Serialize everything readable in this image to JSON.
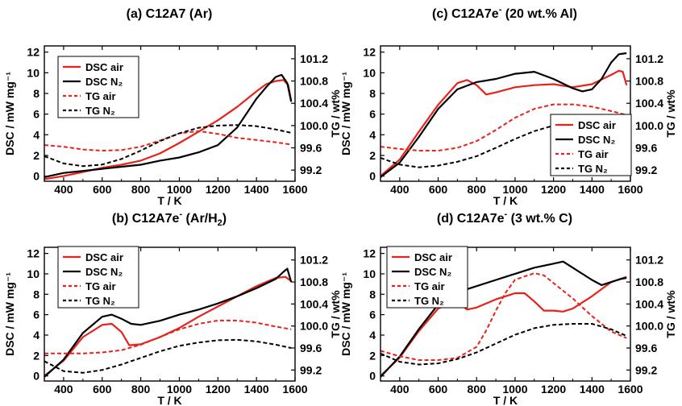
{
  "colors": {
    "air": "#e8211b",
    "n2": "#000000"
  },
  "chart_data": [
    {
      "type": "line",
      "title": "(a) C12A7 (Ar)",
      "title_parts": {
        "main": "(a) C12A7",
        "sup": "",
        "tail": " (Ar)"
      },
      "xlabel": "T / K",
      "ylabel_left": "DSC / mW mg⁻¹",
      "ylabel_right": "TG / wt%",
      "xlim": [
        300,
        1600
      ],
      "ylim_left": [
        -0.5,
        12.6
      ],
      "ylim_right": [
        99.0,
        101.43
      ],
      "xticks": [
        "400",
        "600",
        "800",
        "1000",
        "1200",
        "1400",
        "1600"
      ],
      "yticks_left": [
        "0",
        "2",
        "4",
        "6",
        "8",
        "10",
        "12"
      ],
      "yticks_right": [
        "99.2",
        "99.6",
        "100.0",
        "100.4",
        "100.8",
        "101.2"
      ],
      "legend": {
        "position": "top-left",
        "items": [
          "DSC air",
          "DSC N₂",
          "TG air",
          "TG N₂"
        ]
      },
      "series": [
        {
          "name": "DSC air",
          "axis": "left",
          "style": "solid",
          "color": "air",
          "x": [
            300,
            400,
            500,
            600,
            700,
            800,
            900,
            1000,
            1100,
            1200,
            1300,
            1400,
            1450,
            1500,
            1540,
            1565,
            1580
          ],
          "y": [
            -0.3,
            0.0,
            0.4,
            0.8,
            1.1,
            1.5,
            2.2,
            3.2,
            4.3,
            5.4,
            6.7,
            8.2,
            8.9,
            9.2,
            9.3,
            8.8,
            7.3
          ]
        },
        {
          "name": "DSC N₂",
          "axis": "left",
          "style": "solid",
          "color": "n2",
          "x": [
            300,
            400,
            500,
            600,
            700,
            800,
            900,
            1000,
            1100,
            1200,
            1300,
            1400,
            1450,
            1500,
            1530,
            1560,
            1580
          ],
          "y": [
            -0.1,
            0.3,
            0.5,
            0.7,
            0.9,
            1.1,
            1.5,
            1.8,
            2.3,
            3.0,
            4.7,
            7.5,
            8.6,
            9.6,
            9.8,
            9.0,
            7.2
          ]
        },
        {
          "name": "TG air",
          "axis": "right",
          "style": "dashed",
          "color": "air",
          "x": [
            300,
            400,
            500,
            600,
            700,
            800,
            900,
            1000,
            1100,
            1200,
            1300,
            1400,
            1500,
            1580
          ],
          "y": [
            99.65,
            99.62,
            99.57,
            99.55,
            99.56,
            99.62,
            99.73,
            99.86,
            99.9,
            99.85,
            99.78,
            99.74,
            99.7,
            99.66
          ]
        },
        {
          "name": "TG N₂",
          "axis": "right",
          "style": "dashed",
          "color": "n2",
          "x": [
            300,
            400,
            500,
            600,
            700,
            800,
            900,
            1000,
            1100,
            1200,
            1300,
            1400,
            1500,
            1580
          ],
          "y": [
            99.45,
            99.32,
            99.27,
            99.3,
            99.4,
            99.55,
            99.72,
            99.86,
            99.96,
            100.0,
            100.01,
            99.99,
            99.93,
            99.87
          ]
        }
      ]
    },
    {
      "type": "line",
      "title": "(c) C12A7e⁻ (20 wt.% Al)",
      "title_parts": {
        "main": "(c) C12A7e",
        "sup": "-",
        "tail": " (20 wt.% Al)"
      },
      "xlabel": "T / K",
      "ylabel_left": "DSC / mW mg⁻¹",
      "ylabel_right": "TG / wt%",
      "xlim": [
        300,
        1600
      ],
      "ylim_left": [
        -0.5,
        12.6
      ],
      "ylim_right": [
        99.0,
        101.43
      ],
      "xticks": [
        "400",
        "600",
        "800",
        "1000",
        "1200",
        "1400",
        "1600"
      ],
      "yticks_left": [
        "0",
        "2",
        "4",
        "6",
        "8",
        "10",
        "12"
      ],
      "yticks_right": [
        "99.2",
        "99.6",
        "100.0",
        "100.4",
        "100.8",
        "101.2"
      ],
      "legend": {
        "position": "bottom-right",
        "items": [
          "DSC air",
          "DSC N₂",
          "TG air",
          "TG N₂"
        ]
      },
      "series": [
        {
          "name": "DSC air",
          "axis": "left",
          "style": "solid",
          "color": "air",
          "x": [
            300,
            400,
            500,
            600,
            700,
            750,
            800,
            850,
            900,
            1000,
            1100,
            1200,
            1300,
            1400,
            1500,
            1540,
            1560,
            1580
          ],
          "y": [
            0.0,
            1.6,
            4.3,
            6.9,
            9.0,
            9.3,
            8.8,
            7.9,
            8.1,
            8.6,
            8.8,
            8.9,
            8.6,
            8.9,
            9.8,
            10.2,
            10.1,
            8.8
          ]
        },
        {
          "name": "DSC N₂",
          "axis": "left",
          "style": "solid",
          "color": "n2",
          "x": [
            300,
            400,
            500,
            600,
            700,
            800,
            900,
            1000,
            1100,
            1200,
            1300,
            1350,
            1400,
            1450,
            1500,
            1540,
            1580
          ],
          "y": [
            -0.1,
            1.3,
            3.8,
            6.5,
            8.4,
            9.1,
            9.4,
            9.9,
            10.1,
            9.4,
            8.5,
            8.2,
            8.4,
            9.4,
            11.0,
            11.8,
            11.9
          ]
        },
        {
          "name": "TG air",
          "axis": "right",
          "style": "dashed",
          "color": "air",
          "x": [
            300,
            400,
            500,
            600,
            700,
            800,
            900,
            1000,
            1100,
            1200,
            1300,
            1400,
            1500,
            1580
          ],
          "y": [
            99.62,
            99.58,
            99.55,
            99.55,
            99.6,
            99.72,
            99.92,
            100.14,
            100.3,
            100.38,
            100.38,
            100.34,
            100.26,
            100.19
          ]
        },
        {
          "name": "TG N₂",
          "axis": "right",
          "style": "dashed",
          "color": "n2",
          "x": [
            300,
            400,
            500,
            600,
            700,
            800,
            900,
            1000,
            1100,
            1200,
            1300,
            1400,
            1500,
            1580
          ],
          "y": [
            99.42,
            99.3,
            99.25,
            99.28,
            99.35,
            99.45,
            99.6,
            99.76,
            99.9,
            100.0,
            100.08,
            100.1,
            100.05,
            99.98
          ]
        }
      ]
    },
    {
      "type": "line",
      "title": "(b) C12A7e⁻ (Ar/H₂)",
      "title_parts": {
        "main": "(b) C12A7e",
        "sup": "-",
        "tail": " (Ar/H",
        "sub": "2",
        "tail2": ")"
      },
      "xlabel": "T / K",
      "ylabel_left": "DSC / mW mg⁻¹",
      "ylabel_right": "TG / wt%",
      "xlim": [
        300,
        1600
      ],
      "ylim_left": [
        -0.5,
        12.6
      ],
      "ylim_right": [
        99.0,
        101.43
      ],
      "xticks": [
        "400",
        "600",
        "800",
        "1000",
        "1200",
        "1400",
        "1600"
      ],
      "yticks_left": [
        "0",
        "2",
        "4",
        "6",
        "8",
        "10",
        "12"
      ],
      "yticks_right": [
        "99.2",
        "99.6",
        "100.0",
        "100.4",
        "100.8",
        "101.2"
      ],
      "legend": {
        "position": "top-left",
        "items": [
          "DSC air",
          "DSC N₂",
          "TG air",
          "TG N₂"
        ]
      },
      "series": [
        {
          "name": "DSC air",
          "axis": "left",
          "style": "solid",
          "color": "air",
          "x": [
            300,
            400,
            500,
            600,
            650,
            700,
            740,
            800,
            900,
            1000,
            1100,
            1200,
            1300,
            1400,
            1500,
            1550,
            1580
          ],
          "y": [
            0.0,
            1.5,
            3.8,
            5.0,
            5.1,
            4.3,
            3.0,
            3.1,
            3.8,
            4.7,
            5.8,
            6.8,
            7.8,
            8.8,
            9.6,
            9.7,
            9.3
          ]
        },
        {
          "name": "DSC N₂",
          "axis": "left",
          "style": "solid",
          "color": "n2",
          "x": [
            300,
            400,
            500,
            600,
            650,
            700,
            750,
            800,
            900,
            1000,
            1100,
            1200,
            1300,
            1400,
            1500,
            1540,
            1560,
            1580
          ],
          "y": [
            -0.1,
            1.6,
            4.2,
            5.8,
            6.0,
            5.6,
            5.1,
            5.0,
            5.4,
            6.0,
            6.5,
            7.1,
            7.8,
            8.6,
            9.5,
            10.2,
            10.5,
            9.2
          ]
        },
        {
          "name": "TG air",
          "axis": "right",
          "style": "dashed",
          "color": "air",
          "x": [
            300,
            400,
            500,
            600,
            700,
            800,
            900,
            1000,
            1100,
            1200,
            1300,
            1400,
            1500,
            1580
          ],
          "y": [
            99.5,
            99.5,
            99.5,
            99.52,
            99.56,
            99.66,
            99.8,
            99.94,
            100.04,
            100.1,
            100.1,
            100.06,
            99.99,
            99.94
          ]
        },
        {
          "name": "TG N₂",
          "axis": "right",
          "style": "dashed",
          "color": "n2",
          "x": [
            300,
            400,
            500,
            600,
            700,
            800,
            900,
            1000,
            1100,
            1200,
            1300,
            1400,
            1500,
            1580
          ],
          "y": [
            99.36,
            99.18,
            99.15,
            99.2,
            99.3,
            99.42,
            99.54,
            99.64,
            99.7,
            99.74,
            99.75,
            99.72,
            99.66,
            99.6
          ]
        }
      ]
    },
    {
      "type": "line",
      "title": "(d) C12A7e⁻ (3 wt.% C)",
      "title_parts": {
        "main": "(d) C12A7e",
        "sup": "-",
        "tail": " (3 wt.% C)"
      },
      "xlabel": "T / K",
      "ylabel_left": "DSC / mW mg⁻¹",
      "ylabel_right": "TG / wt%",
      "xlim": [
        300,
        1600
      ],
      "ylim_left": [
        -0.5,
        12.6
      ],
      "ylim_right": [
        99.0,
        101.43
      ],
      "xticks": [
        "400",
        "600",
        "800",
        "1000",
        "1200",
        "1400",
        "1600"
      ],
      "yticks_left": [
        "0",
        "2",
        "4",
        "6",
        "8",
        "10",
        "12"
      ],
      "yticks_right": [
        "99.2",
        "99.6",
        "100.0",
        "100.4",
        "100.8",
        "101.2"
      ],
      "legend": {
        "position": "top-left",
        "items": [
          "DSC air",
          "DSC N₂",
          "TG air",
          "TG N₂"
        ]
      },
      "series": [
        {
          "name": "DSC air",
          "axis": "left",
          "style": "solid",
          "color": "air",
          "x": [
            300,
            400,
            500,
            600,
            700,
            750,
            800,
            900,
            1000,
            1050,
            1100,
            1150,
            1200,
            1250,
            1300,
            1400,
            1500,
            1580
          ],
          "y": [
            0.0,
            1.8,
            4.4,
            6.6,
            7.3,
            6.5,
            6.7,
            7.5,
            8.1,
            8.1,
            7.3,
            6.4,
            6.4,
            6.3,
            6.6,
            7.8,
            9.2,
            9.7
          ]
        },
        {
          "name": "DSC N₂",
          "axis": "left",
          "style": "solid",
          "color": "n2",
          "x": [
            300,
            400,
            500,
            600,
            700,
            800,
            900,
            1000,
            1100,
            1200,
            1250,
            1300,
            1400,
            1450,
            1500,
            1550,
            1580
          ],
          "y": [
            -0.1,
            1.9,
            4.6,
            7.0,
            8.2,
            8.8,
            9.4,
            10.0,
            10.6,
            11.0,
            11.2,
            10.6,
            9.4,
            8.9,
            9.2,
            9.5,
            9.6
          ]
        },
        {
          "name": "TG air",
          "axis": "right",
          "style": "dashed",
          "color": "air",
          "x": [
            300,
            400,
            500,
            600,
            700,
            800,
            850,
            900,
            950,
            1000,
            1100,
            1150,
            1200,
            1300,
            1400,
            1500,
            1580
          ],
          "y": [
            99.55,
            99.45,
            99.38,
            99.38,
            99.42,
            99.62,
            99.92,
            100.28,
            100.6,
            100.84,
            100.96,
            100.92,
            100.78,
            100.5,
            100.18,
            99.9,
            99.78
          ]
        },
        {
          "name": "TG N₂",
          "axis": "right",
          "style": "dashed",
          "color": "n2",
          "x": [
            300,
            400,
            500,
            600,
            700,
            800,
            900,
            1000,
            1100,
            1200,
            1300,
            1400,
            1500,
            1580
          ],
          "y": [
            99.5,
            99.35,
            99.3,
            99.32,
            99.4,
            99.52,
            99.68,
            99.84,
            99.96,
            100.02,
            100.04,
            100.04,
            99.94,
            99.82
          ]
        }
      ]
    }
  ]
}
